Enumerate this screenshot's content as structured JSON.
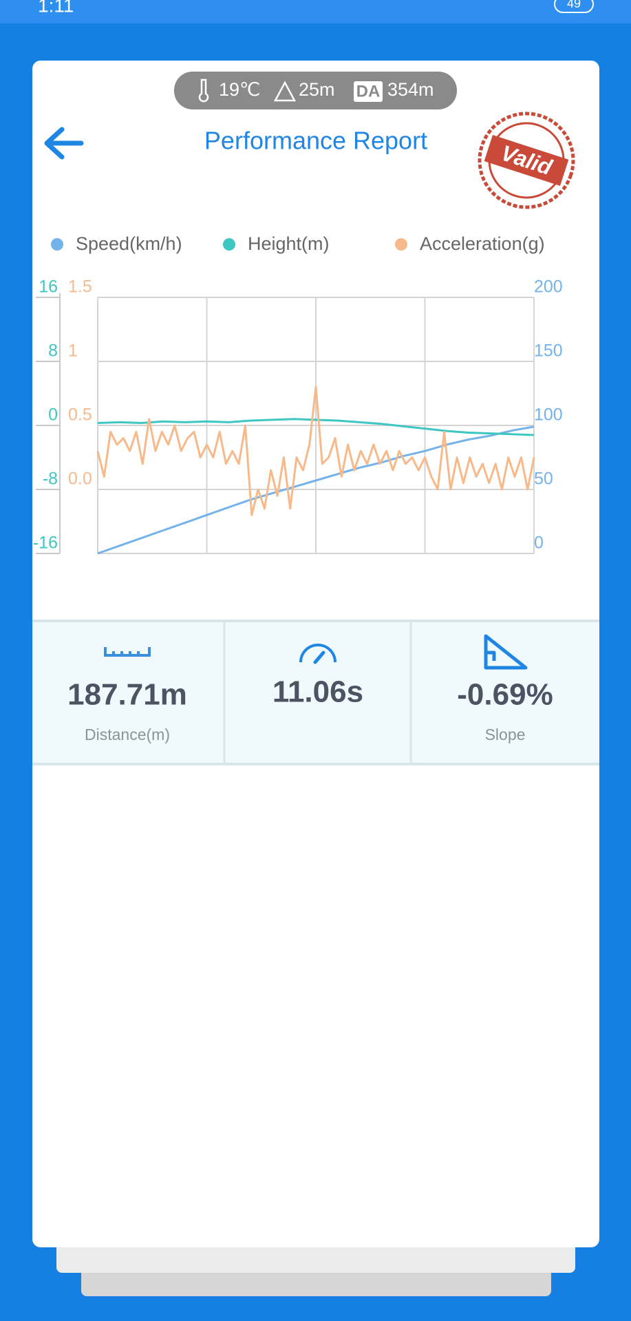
{
  "status_bar": {
    "time": "1:11",
    "battery": "49"
  },
  "conditions": {
    "temperature": "19℃",
    "altitude": "25m",
    "da_badge": "DA",
    "density_altitude": "354m"
  },
  "header": {
    "title": "Performance Report",
    "stamp": "Valid"
  },
  "chart_data": {
    "type": "line",
    "ylim": [
      -16,
      16
    ],
    "yticks": [
      16,
      8,
      0,
      -8,
      -16
    ],
    "y3lim": [
      -0.5,
      1.5
    ],
    "y3ticks": [
      1.5,
      1,
      0.5,
      {
        "value": 0,
        "label": "0.0"
      }
    ],
    "y2lim": [
      0,
      200
    ],
    "y2ticks": [
      200,
      150,
      100,
      50,
      0
    ],
    "grid": true,
    "series": [
      {
        "name": "Speed(km/h)",
        "color": "#74b3ea",
        "axis": "y2",
        "values": [
          0,
          6,
          12,
          18,
          24,
          30,
          36,
          42,
          47,
          52,
          57,
          62,
          67,
          71,
          76,
          80,
          85,
          89,
          92,
          96,
          99
        ]
      },
      {
        "name": "Height(m)",
        "color": "#3ec6c2",
        "axis": "y",
        "values": [
          0.3,
          0.4,
          0.3,
          0.5,
          0.4,
          0.5,
          0.4,
          0.6,
          0.7,
          0.8,
          0.7,
          0.6,
          0.4,
          0.2,
          -0.1,
          -0.4,
          -0.7,
          -0.9,
          -1.0,
          -1.1,
          -1.2
        ]
      },
      {
        "name": "Acceleration(g)",
        "color": "#f7b98a",
        "axis": "y3",
        "values": [
          0.3,
          0.1,
          0.45,
          0.35,
          0.4,
          0.3,
          0.45,
          0.2,
          0.55,
          0.3,
          0.45,
          0.35,
          0.5,
          0.3,
          0.4,
          0.45,
          0.25,
          0.35,
          0.25,
          0.45,
          0.2,
          0.3,
          0.2,
          0.5,
          -0.2,
          0.0,
          -0.15,
          0.15,
          -0.05,
          0.25,
          -0.15,
          0.25,
          0.15,
          0.35,
          0.8,
          0.2,
          0.25,
          0.4,
          0.1,
          0.35,
          0.15,
          0.3,
          0.2,
          0.35,
          0.2,
          0.3,
          0.15,
          0.3,
          0.2,
          0.25,
          0.15,
          0.25,
          0.1,
          0.0,
          0.45,
          0.0,
          0.25,
          0.05,
          0.25,
          0.1,
          0.2,
          0.05,
          0.2,
          0.0,
          0.25,
          0.1,
          0.25,
          0.0,
          0.25
        ]
      }
    ]
  },
  "stats": [
    {
      "value": "187.71m",
      "label": "Distance(m)"
    },
    {
      "value": "11.06s"
    },
    {
      "value": "-0.69%",
      "label": "Slope"
    }
  ]
}
